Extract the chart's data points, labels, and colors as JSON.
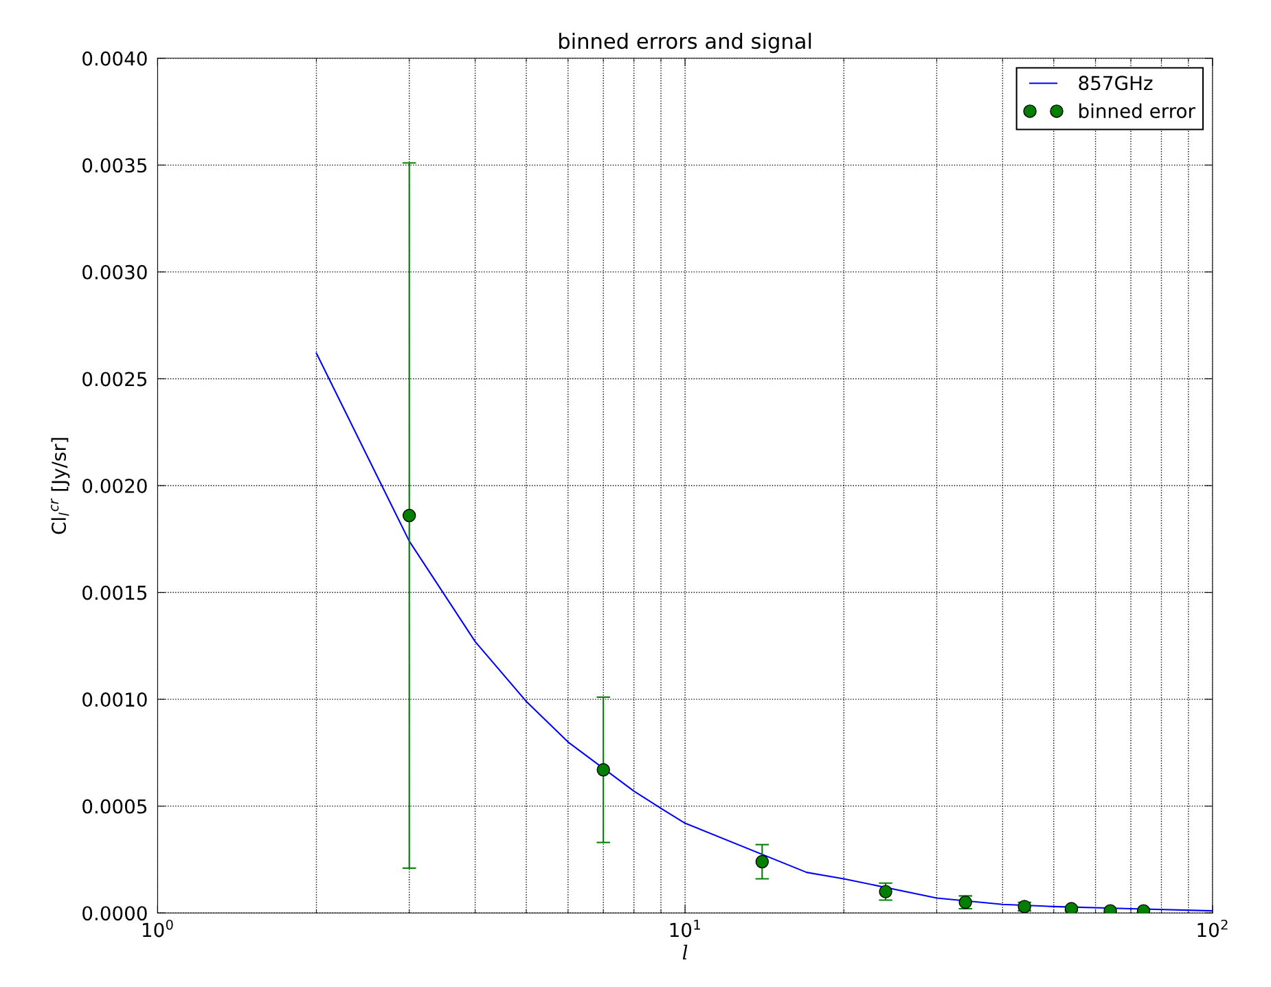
{
  "chart_data": {
    "type": "line",
    "title": "binned errors and signal",
    "xlabel": "l",
    "ylabel": "Cl$_{l}$$^{cr}$ [Jy/sr]",
    "log": "x",
    "xlim": [
      1,
      100
    ],
    "xticks": [
      {
        "value": 1,
        "label": "10$^{0}$"
      },
      {
        "value": 10,
        "label": "10$^{1}$"
      },
      {
        "value": 100,
        "label": "10$^{2}$"
      }
    ],
    "ylim": [
      0,
      0.004
    ],
    "yticks": [
      {
        "value": 0,
        "label": "0.0000"
      },
      {
        "value": 0.0005,
        "label": "0.0005"
      },
      {
        "value": 0.001,
        "label": "0.0010"
      },
      {
        "value": 0.0015,
        "label": "0.0015"
      },
      {
        "value": 0.002,
        "label": "0.0020"
      },
      {
        "value": 0.0025,
        "label": "0.0025"
      },
      {
        "value": 0.003,
        "label": "0.0030"
      },
      {
        "value": 0.0035,
        "label": "0.0035"
      },
      {
        "value": 0.004,
        "label": "0.0040"
      }
    ],
    "grid": true,
    "legend": "top right",
    "series": [
      {
        "name": "857GHz",
        "color": "#0000ff",
        "marker": "none",
        "line_style": "solid",
        "x": [
          2,
          3,
          4,
          5,
          6,
          8,
          9,
          10,
          17,
          20,
          30,
          40,
          50,
          70,
          100
        ],
        "values": [
          0.00262,
          0.00174,
          0.00127,
          0.00099,
          0.0008,
          0.00057,
          0.00049,
          0.00042,
          0.00019,
          0.00016,
          7e-05,
          4e-05,
          3e-05,
          2e-05,
          1e-05
        ]
      },
      {
        "name": "binned error",
        "type": "scatter",
        "color": "#007f00",
        "marker": "circle",
        "x": [
          3,
          7,
          14,
          24,
          34,
          44,
          54,
          64,
          74
        ],
        "values": [
          0.00186,
          0.00067,
          0.00024,
          0.0001,
          5e-05,
          3e-05,
          2e-05,
          1e-05,
          1e-05
        ],
        "errors": [
          0.00165,
          0.00034,
          8e-05,
          4e-05,
          3e-05,
          2e-05,
          1e-05,
          1e-05,
          1e-05
        ]
      }
    ]
  }
}
